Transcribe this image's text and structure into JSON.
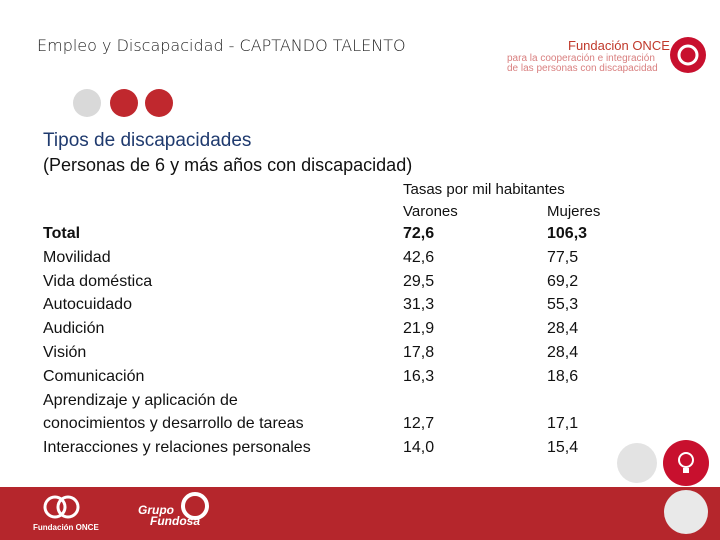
{
  "header": {
    "title": "Empleo y Discapacidad - CAPTANDO TALENTO",
    "logo": {
      "name": "Fundación ONCE",
      "line1": "para la cooperación e integración",
      "line2": "de las personas con discapacidad"
    }
  },
  "section": {
    "title": "Tipos de discapacidades",
    "subtitle": "(Personas de 6 y más años con discapacidad)"
  },
  "table": {
    "caption": "Tasas por mil habitantes",
    "columns": [
      "Varones",
      "Mujeres"
    ],
    "rows": [
      {
        "label": [
          "Total"
        ],
        "values": [
          "72,6",
          "106,3"
        ],
        "bold": true
      },
      {
        "label": [
          "Movilidad"
        ],
        "values": [
          "42,6",
          "77,5"
        ]
      },
      {
        "label": [
          "Vida doméstica"
        ],
        "values": [
          "29,5",
          "69,2"
        ]
      },
      {
        "label": [
          "Autocuidado"
        ],
        "values": [
          "31,3",
          "55,3"
        ]
      },
      {
        "label": [
          "Audición"
        ],
        "values": [
          "21,9",
          "28,4"
        ]
      },
      {
        "label": [
          "Visión"
        ],
        "values": [
          "17,8",
          "28,4"
        ]
      },
      {
        "label": [
          "Comunicación"
        ],
        "values": [
          "16,3",
          "18,6"
        ]
      },
      {
        "label": [
          "Aprendizaje y aplicación de",
          "conocimientos y desarrollo de tareas"
        ],
        "values": [
          "12,7",
          "17,1"
        ]
      },
      {
        "label": [
          "Interacciones y relaciones personales"
        ],
        "values": [
          "14,0",
          "15,4"
        ]
      }
    ]
  },
  "footer": {
    "logo1": "Fundación ONCE",
    "logo2_line1": "Grupo",
    "logo2_line2": "Fundosa"
  }
}
